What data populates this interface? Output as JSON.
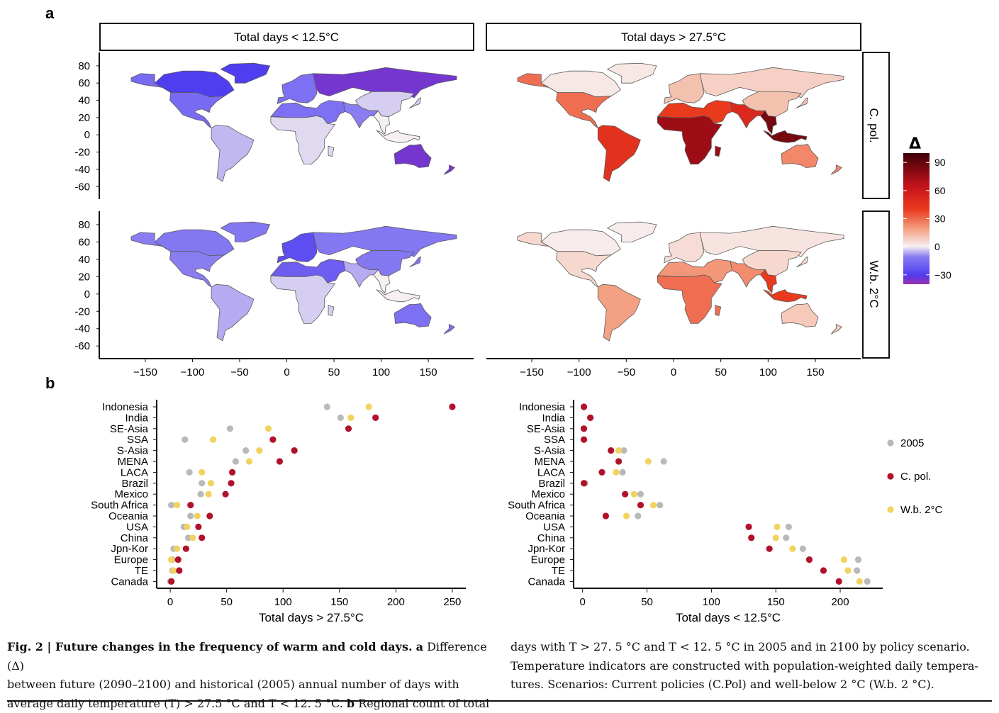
{
  "panel_labels": {
    "a": "a",
    "b": "b"
  },
  "chart_data": [
    {
      "type": "heatmap",
      "subtype": "choropleth-map-grid",
      "col_strips": [
        "Total days < 12.5°C",
        "Total days > 27.5°C"
      ],
      "row_strips": [
        "C. pol.",
        "W.b. 2°C"
      ],
      "x_ticks": [
        -150,
        -100,
        -50,
        0,
        50,
        100,
        150
      ],
      "y_ticks": [
        80,
        60,
        40,
        20,
        0,
        -20,
        -40,
        -60
      ],
      "legend": {
        "title": "Δ",
        "ticks": [
          90,
          60,
          30,
          0,
          -30
        ],
        "range": [
          -40,
          100
        ],
        "colors": [
          "#9a2fb0",
          "#4f3df0",
          "#8a7df2",
          "#f7f0f0",
          "#f4a183",
          "#ea3a1e",
          "#c4121c",
          "#3d0005"
        ]
      },
      "regions": [
        {
          "name": "North America",
          "lt125_cpol": -16,
          "gt275_cpol": 30,
          "lt125_wb": -10,
          "gt275_wb": 6
        },
        {
          "name": "Canada",
          "lt125_cpol": -30,
          "gt275_cpol": 2,
          "lt125_wb": -12,
          "gt275_wb": 1
        },
        {
          "name": "South America",
          "lt125_cpol": -5,
          "gt275_cpol": 45,
          "lt125_wb": -6,
          "gt275_wb": 20
        },
        {
          "name": "Europe",
          "lt125_cpol": -14,
          "gt275_cpol": 12,
          "lt125_wb": -25,
          "gt275_wb": 5
        },
        {
          "name": "Russia",
          "lt125_cpol": -35,
          "gt275_cpol": 8,
          "lt125_wb": -12,
          "gt275_wb": 3
        },
        {
          "name": "Africa",
          "lt125_cpol": -2,
          "gt275_cpol": 75,
          "lt125_wb": -3,
          "gt275_wb": 30
        },
        {
          "name": "MENA",
          "lt125_cpol": -14,
          "gt275_cpol": 40,
          "lt125_wb": -20,
          "gt275_wb": 22
        },
        {
          "name": "South Asia",
          "lt125_cpol": -10,
          "gt275_cpol": 50,
          "lt125_wb": -6,
          "gt275_wb": 24
        },
        {
          "name": "China",
          "lt125_cpol": -3,
          "gt275_cpol": 12,
          "lt125_wb": -12,
          "gt275_wb": 6
        },
        {
          "name": "SE-Asia",
          "lt125_cpol": 0,
          "gt275_cpol": 85,
          "lt125_wb": 0,
          "gt275_wb": 40
        },
        {
          "name": "Australia",
          "lt125_cpol": -35,
          "gt275_cpol": 25,
          "lt125_wb": -14,
          "gt275_wb": 10
        }
      ]
    },
    {
      "type": "scatter",
      "xlabel": "Total days > 27.5°C",
      "xlim": [
        -12,
        262
      ],
      "x_ticks": [
        0,
        50,
        100,
        150,
        200,
        250
      ],
      "categories": [
        "Indonesia",
        "India",
        "SE-Asia",
        "SSA",
        "S-Asia",
        "MENA",
        "LACA",
        "Brazil",
        "Mexico",
        "South Africa",
        "Oceania",
        "USA",
        "China",
        "Jpn-Kor",
        "Europe",
        "TE",
        "Canada"
      ],
      "series": [
        {
          "name": "2005",
          "color": "#b9b9b9",
          "values": [
            139,
            151,
            53,
            13,
            67,
            58,
            17,
            28,
            27,
            1,
            18,
            12,
            16,
            3,
            2,
            2,
            0
          ]
        },
        {
          "name": "W.b. 2°C",
          "color": "#f2d35f",
          "values": [
            176,
            160,
            87,
            38,
            79,
            70,
            28,
            36,
            34,
            6,
            24,
            15,
            20,
            6,
            1,
            3,
            1
          ]
        },
        {
          "name": "C. pol.",
          "color": "#b1112d",
          "values": [
            250,
            182,
            158,
            91,
            110,
            97,
            55,
            54,
            49,
            18,
            35,
            25,
            28,
            14,
            7,
            8,
            1
          ]
        }
      ]
    },
    {
      "type": "scatter",
      "xlabel": "Total days < 12.5°C",
      "xlim": [
        -7,
        233
      ],
      "x_ticks": [
        0,
        50,
        100,
        150,
        200
      ],
      "categories": [
        "Indonesia",
        "India",
        "SE-Asia",
        "SSA",
        "S-Asia",
        "MENA",
        "LACA",
        "Brazil",
        "Mexico",
        "South Africa",
        "Oceania",
        "USA",
        "China",
        "Jpn-Kor",
        "Europe",
        "TE",
        "Canada"
      ],
      "series": [
        {
          "name": "2005",
          "color": "#b9b9b9",
          "values": [
            1,
            6,
            1,
            1,
            32,
            63,
            31,
            2,
            45,
            60,
            43,
            160,
            158,
            171,
            214,
            213,
            221
          ]
        },
        {
          "name": "W.b. 2°C",
          "color": "#f2d35f",
          "values": [
            1,
            6,
            1,
            1,
            28,
            51,
            26,
            1,
            40,
            55,
            34,
            151,
            150,
            163,
            203,
            206,
            215
          ]
        },
        {
          "name": "C. pol.",
          "color": "#b1112d",
          "values": [
            1,
            6,
            1,
            1,
            22,
            28,
            15,
            1,
            33,
            45,
            18,
            129,
            131,
            145,
            176,
            187,
            199
          ]
        }
      ],
      "legend_position": "right"
    }
  ],
  "caption": {
    "fig_label": "Fig. 2 | Future changes in the frequency of warm and cold days.",
    "part_a_label": "a",
    "col1_line1": " Difference (Δ)",
    "col1_line2": "between future (2090–2100) and historical (2005) annual number of days with",
    "col1_line3_pre": "average daily temperature (T) > 27.5 °C and T < 12. 5 °C. ",
    "part_b_label": "b",
    "col1_line3_post": " Regional count of total",
    "col2_line1": "days with T > 27. 5 °C and T < 12. 5 °C in 2005 and in 2100 by policy scenario.",
    "col2_line2": "Temperature indicators are constructed with population-weighted daily tempera-",
    "col2_line3": "tures. Scenarios: Current policies (C.Pol) and well-below 2 °C (W.b. 2 °C)."
  }
}
